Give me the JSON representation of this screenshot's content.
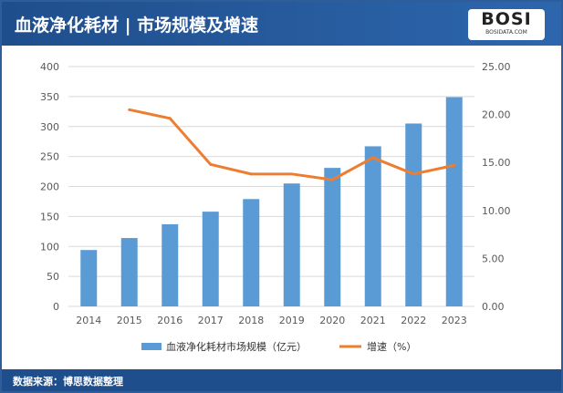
{
  "header": {
    "title": "血液净化耗材 | 市场规模及增速",
    "logo_text": "BOSI",
    "logo_sub": "BOSIDATA.COM"
  },
  "footer": {
    "source": "数据来源：博思数据整理"
  },
  "colors": {
    "bar": "#5b9bd5",
    "line": "#ed7d31",
    "header": "#1f4e8c"
  },
  "chart_data": {
    "type": "bar+line",
    "categories": [
      "2014",
      "2015",
      "2016",
      "2017",
      "2018",
      "2019",
      "2020",
      "2021",
      "2022",
      "2023"
    ],
    "series": [
      {
        "name": "血液净化耗材市场规模（亿元）",
        "type": "bar",
        "axis": "left",
        "values": [
          94,
          114,
          137,
          158,
          179,
          205,
          231,
          267,
          305,
          349
        ]
      },
      {
        "name": "增速（%）",
        "type": "line",
        "axis": "right",
        "values": [
          null,
          20.5,
          19.6,
          14.8,
          13.8,
          13.8,
          13.2,
          15.5,
          13.8,
          14.7
        ]
      }
    ],
    "ylim_left": [
      0,
      400
    ],
    "yticks_left": [
      "0",
      "50",
      "100",
      "150",
      "200",
      "250",
      "300",
      "350",
      "400"
    ],
    "ylim_right": [
      0,
      25
    ],
    "yticks_right": [
      "0.00",
      "5.00",
      "10.00",
      "15.00",
      "20.00",
      "25.00"
    ],
    "grid": true,
    "legend": "bottom"
  }
}
